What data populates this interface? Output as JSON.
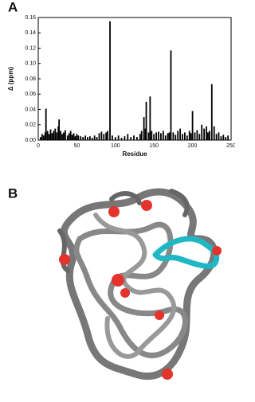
{
  "panel_labels": [
    "A",
    "B"
  ],
  "chart_data": {
    "type": "bar",
    "xlabel": "Residue",
    "ylabel": "Δ (ppm)",
    "x": [
      3,
      5,
      7,
      9,
      10,
      12,
      14,
      16,
      18,
      20,
      22,
      24,
      26,
      27,
      29,
      31,
      33,
      35,
      38,
      40,
      42,
      44,
      46,
      48,
      50,
      52,
      55,
      58,
      61,
      64,
      67,
      70,
      73,
      76,
      79,
      82,
      85,
      88,
      90,
      93,
      96,
      100,
      104,
      108,
      112,
      116,
      120,
      124,
      128,
      132,
      134,
      137,
      139,
      140,
      143,
      145,
      147,
      150,
      153,
      156,
      159,
      162,
      165,
      168,
      170,
      172,
      175,
      178,
      181,
      184,
      187,
      190,
      193,
      196,
      198,
      200,
      203,
      206,
      209,
      212,
      215,
      218,
      220,
      222,
      225,
      228,
      231,
      234,
      237,
      240,
      243,
      246
    ],
    "values": [
      0.004,
      0.008,
      0.006,
      0.01,
      0.041,
      0.012,
      0.008,
      0.014,
      0.009,
      0.012,
      0.015,
      0.01,
      0.018,
      0.027,
      0.012,
      0.008,
      0.01,
      0.013,
      0.006,
      0.009,
      0.012,
      0.007,
      0.009,
      0.005,
      0.008,
      0.006,
      0.005,
      0.004,
      0.006,
      0.004,
      0.005,
      0.003,
      0.006,
      0.004,
      0.009,
      0.011,
      0.008,
      0.01,
      0.012,
      0.155,
      0.006,
      0.004,
      0.006,
      0.003,
      0.005,
      0.008,
      0.004,
      0.006,
      0.004,
      0.008,
      0.012,
      0.03,
      0.015,
      0.05,
      0.01,
      0.057,
      0.012,
      0.008,
      0.01,
      0.011,
      0.009,
      0.012,
      0.006,
      0.009,
      0.01,
      0.117,
      0.01,
      0.007,
      0.012,
      0.015,
      0.008,
      0.01,
      0.006,
      0.012,
      0.009,
      0.038,
      0.01,
      0.013,
      0.008,
      0.02,
      0.015,
      0.018,
      0.01,
      0.012,
      0.073,
      0.018,
      0.008,
      0.01,
      0.005,
      0.007,
      0.004,
      0.006
    ],
    "color": "#000000",
    "xlim": [
      0,
      250
    ],
    "xticks": [
      0,
      50,
      100,
      150,
      200,
      250
    ],
    "ylim": [
      0,
      0.16
    ],
    "yticks": [
      {
        "value": 0,
        "label": "0.00"
      },
      {
        "value": 0.02,
        "label": "0.02"
      },
      {
        "value": 0.04,
        "label": "0.04"
      },
      {
        "value": 0.06,
        "label": "0.06"
      },
      {
        "value": 0.08,
        "label": "0.08"
      },
      {
        "value": 0.1,
        "label": "0.10"
      },
      {
        "value": 0.12,
        "label": "0.12"
      },
      {
        "value": 0.14,
        "label": "0.14"
      },
      {
        "value": 0.16,
        "label": "0.16"
      }
    ]
  }
}
